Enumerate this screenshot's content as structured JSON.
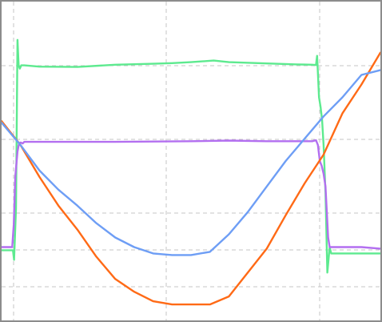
{
  "chart_data": {
    "type": "line",
    "title": "",
    "xlabel": "",
    "ylabel": "",
    "xlim": [
      0,
      1000
    ],
    "ylim": [
      0,
      100
    ],
    "grid": true,
    "legend": "none",
    "series": [
      {
        "color": "#5dea8f",
        "x": [
          0,
          30,
          33,
          38,
          42,
          45,
          48,
          52,
          60,
          100,
          200,
          300,
          400,
          450,
          500,
          560,
          600,
          700,
          780,
          820,
          830,
          833,
          838,
          842,
          846,
          850,
          855,
          860,
          866,
          870,
          900,
          950,
          1000
        ],
        "y": [
          22,
          22,
          19,
          35,
          88,
          80,
          79,
          80,
          80,
          79.6,
          79.5,
          80.2,
          80.5,
          80.7,
          81.0,
          81.5,
          81.0,
          80.6,
          80.3,
          80.2,
          80.1,
          83,
          70,
          67,
          63,
          55,
          40,
          15,
          23,
          21,
          21,
          21,
          21
        ]
      },
      {
        "color": "#b36ff0",
        "x": [
          0,
          28,
          32,
          36,
          42,
          46,
          50,
          56,
          60,
          100,
          200,
          300,
          400,
          500,
          600,
          700,
          800,
          820,
          830,
          835,
          840,
          845,
          850,
          855,
          862,
          866,
          870,
          900,
          950,
          1000
        ],
        "y": [
          23,
          23,
          30,
          45,
          53,
          55.5,
          55.8,
          55.5,
          56,
          56,
          56,
          56,
          56.1,
          56.2,
          56.4,
          56.2,
          56.2,
          56.2,
          56.5,
          55,
          50,
          48.5,
          46,
          42,
          26,
          23,
          23,
          23,
          23,
          22.5
        ]
      },
      {
        "color": "#ff6a16",
        "x": [
          0,
          50,
          100,
          150,
          200,
          250,
          300,
          350,
          400,
          450,
          500,
          550,
          600,
          650,
          700,
          750,
          800,
          850,
          900,
          950,
          1000
        ],
        "y": [
          62.5,
          55,
          45,
          36,
          28.5,
          20,
          13,
          9,
          6,
          5,
          5,
          5,
          7.5,
          15,
          22.5,
          33,
          43,
          52,
          65,
          74,
          84
        ]
      },
      {
        "color": "#6e9ef5",
        "x": [
          0,
          50,
          100,
          150,
          200,
          250,
          300,
          350,
          400,
          450,
          500,
          550,
          600,
          650,
          700,
          750,
          800,
          850,
          900,
          950,
          1000
        ],
        "y": [
          62,
          55,
          47,
          41,
          36,
          30.5,
          26,
          23,
          21,
          20.5,
          20.5,
          21.5,
          27,
          34,
          42,
          50,
          57,
          64,
          70,
          77,
          78.5
        ]
      }
    ]
  }
}
